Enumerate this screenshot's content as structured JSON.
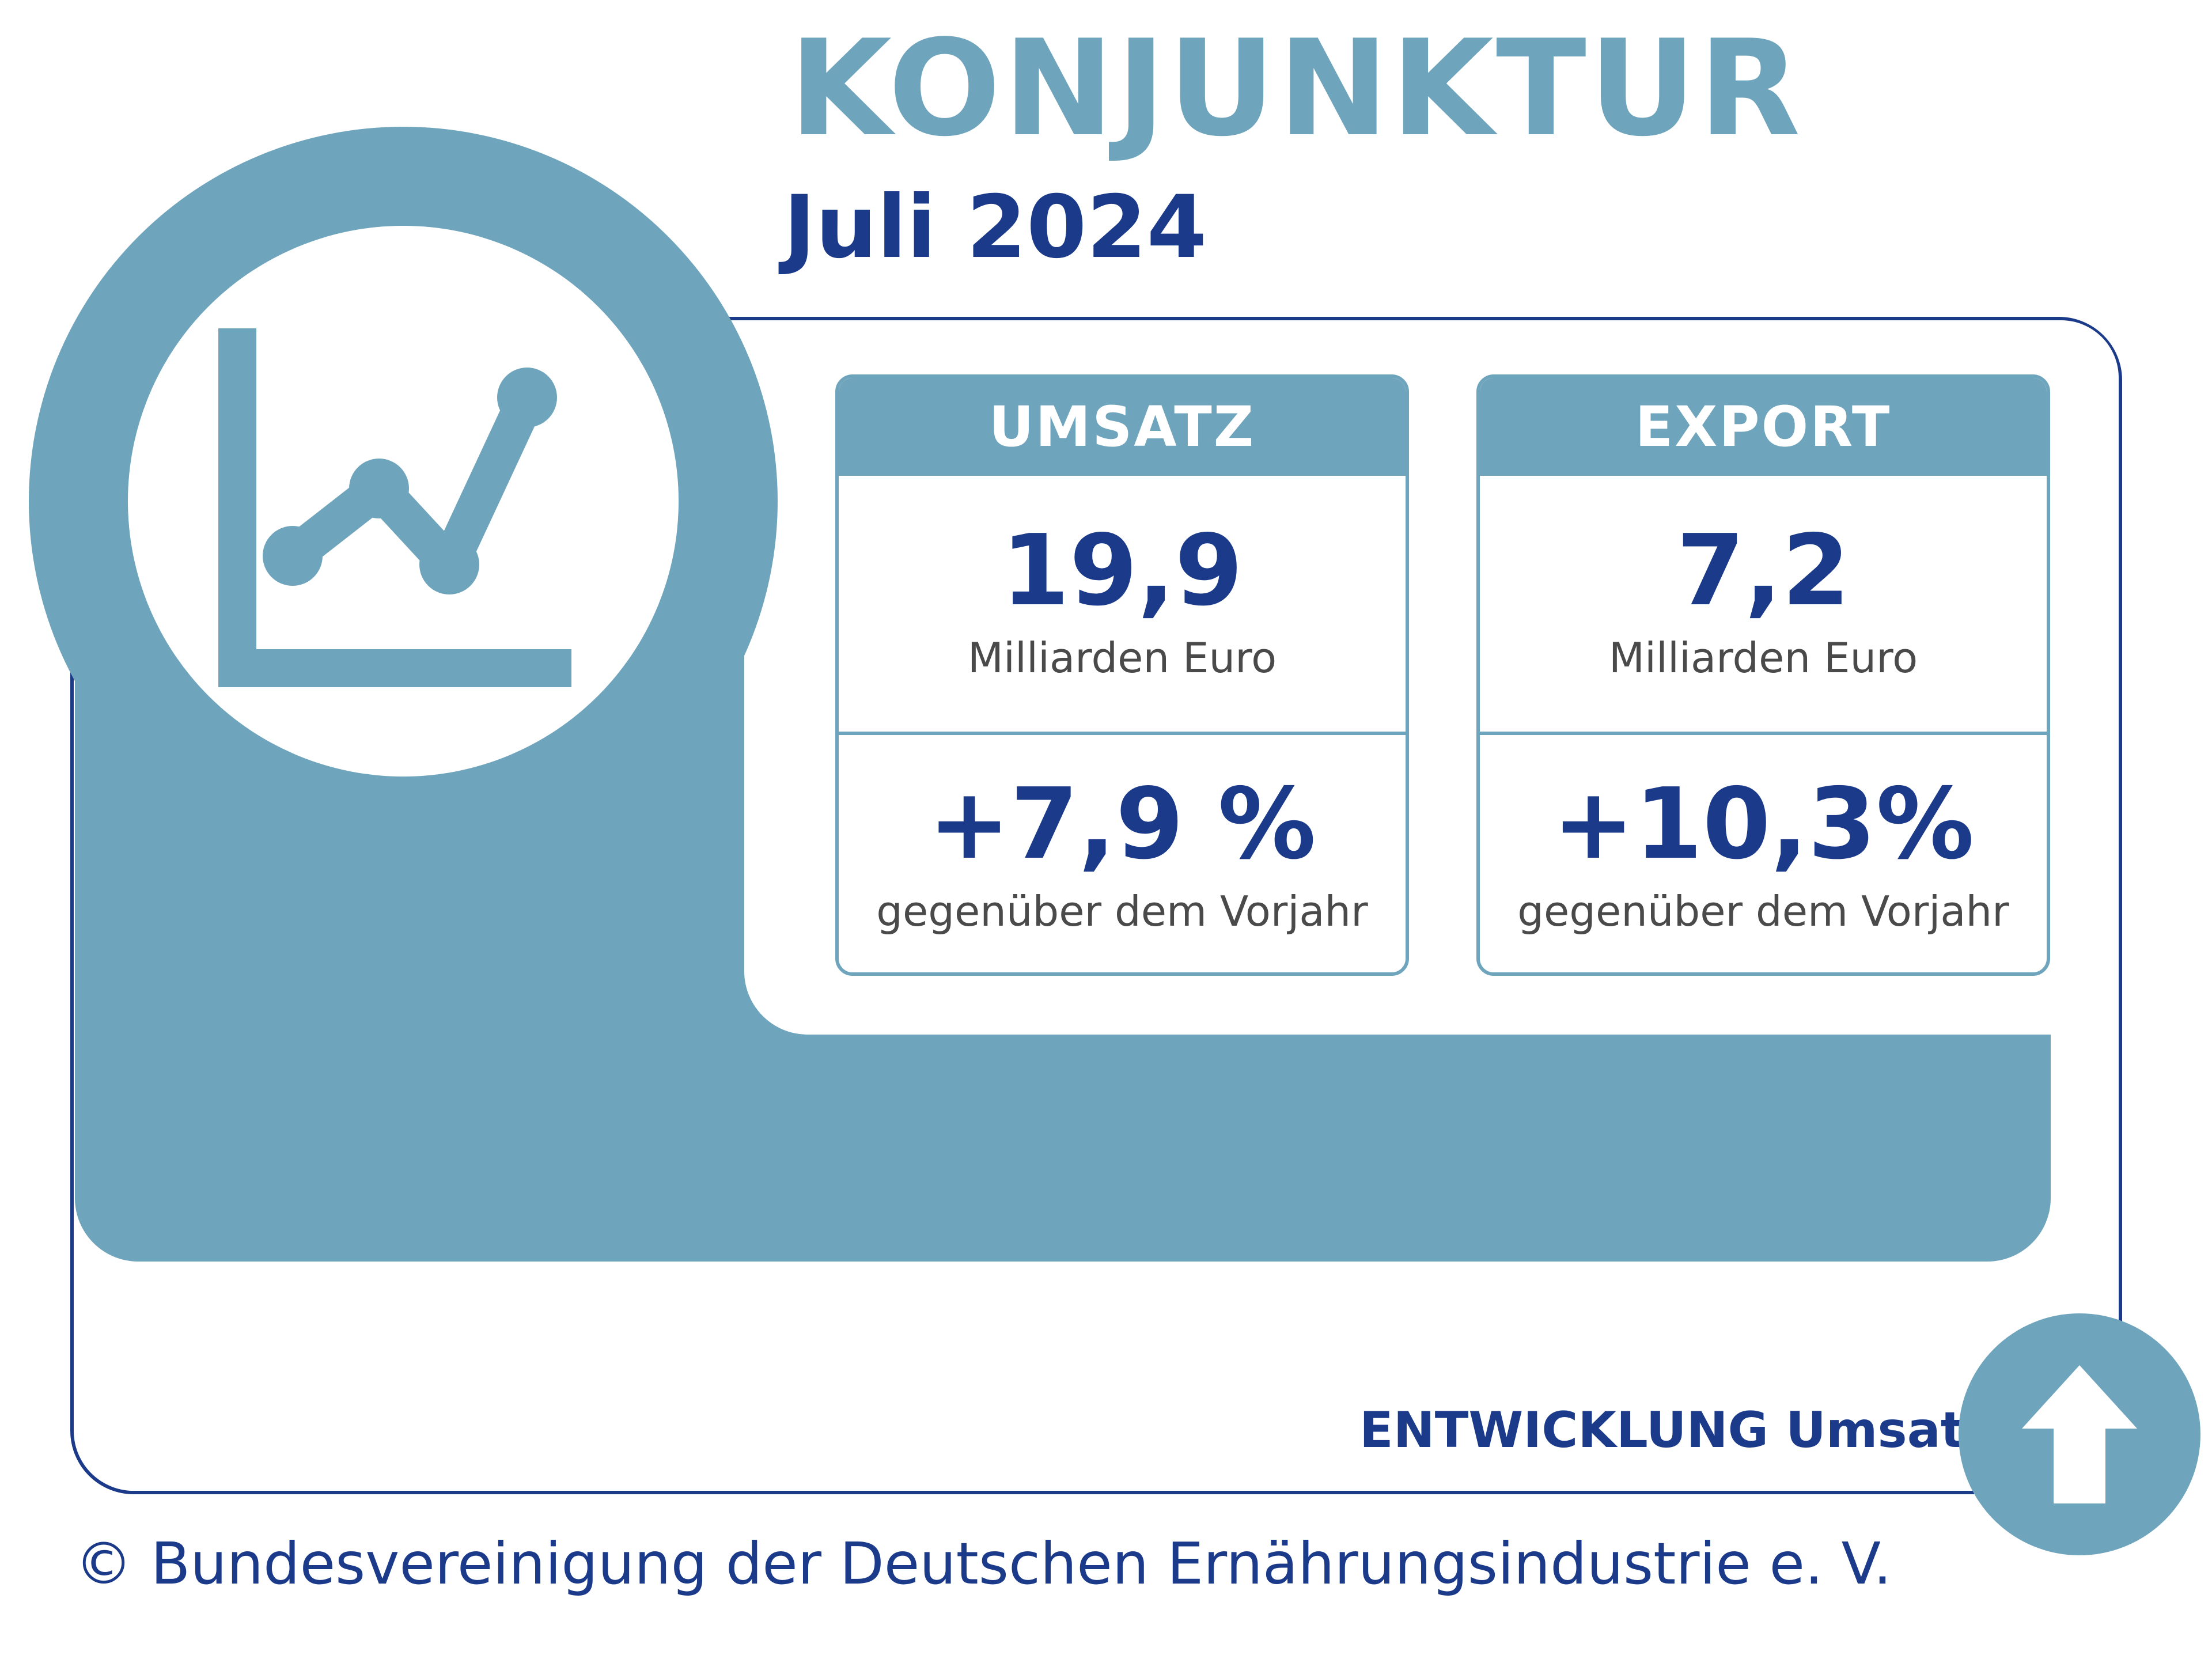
{
  "header": {
    "title": "KONJUNKTUR",
    "subtitle": "Juli 2024"
  },
  "cards": [
    {
      "header": "UMSATZ",
      "value": "19,9",
      "unit": "Milliarden Euro",
      "change": "+7,9 %",
      "change_label": "gegenüber dem Vorjahr"
    },
    {
      "header": "EXPORT",
      "value": "7,2",
      "unit": "Milliarden Euro",
      "change": "+10,3%",
      "change_label": "gegenüber dem Vorjahr"
    }
  ],
  "development": {
    "label": "ENTWICKLUNG Umsatz:",
    "direction": "up",
    "icon": "arrow-up-icon"
  },
  "footer": {
    "copyright": "© Bundesvereinigung der Deutschen Ernährungsindustrie e. V."
  },
  "icons": {
    "main": "line-chart-icon"
  },
  "colors": {
    "accent": "#6fa5bc",
    "navy": "#1b3a8a",
    "text_gray": "#4a4a4a",
    "background": "#ffffff"
  }
}
